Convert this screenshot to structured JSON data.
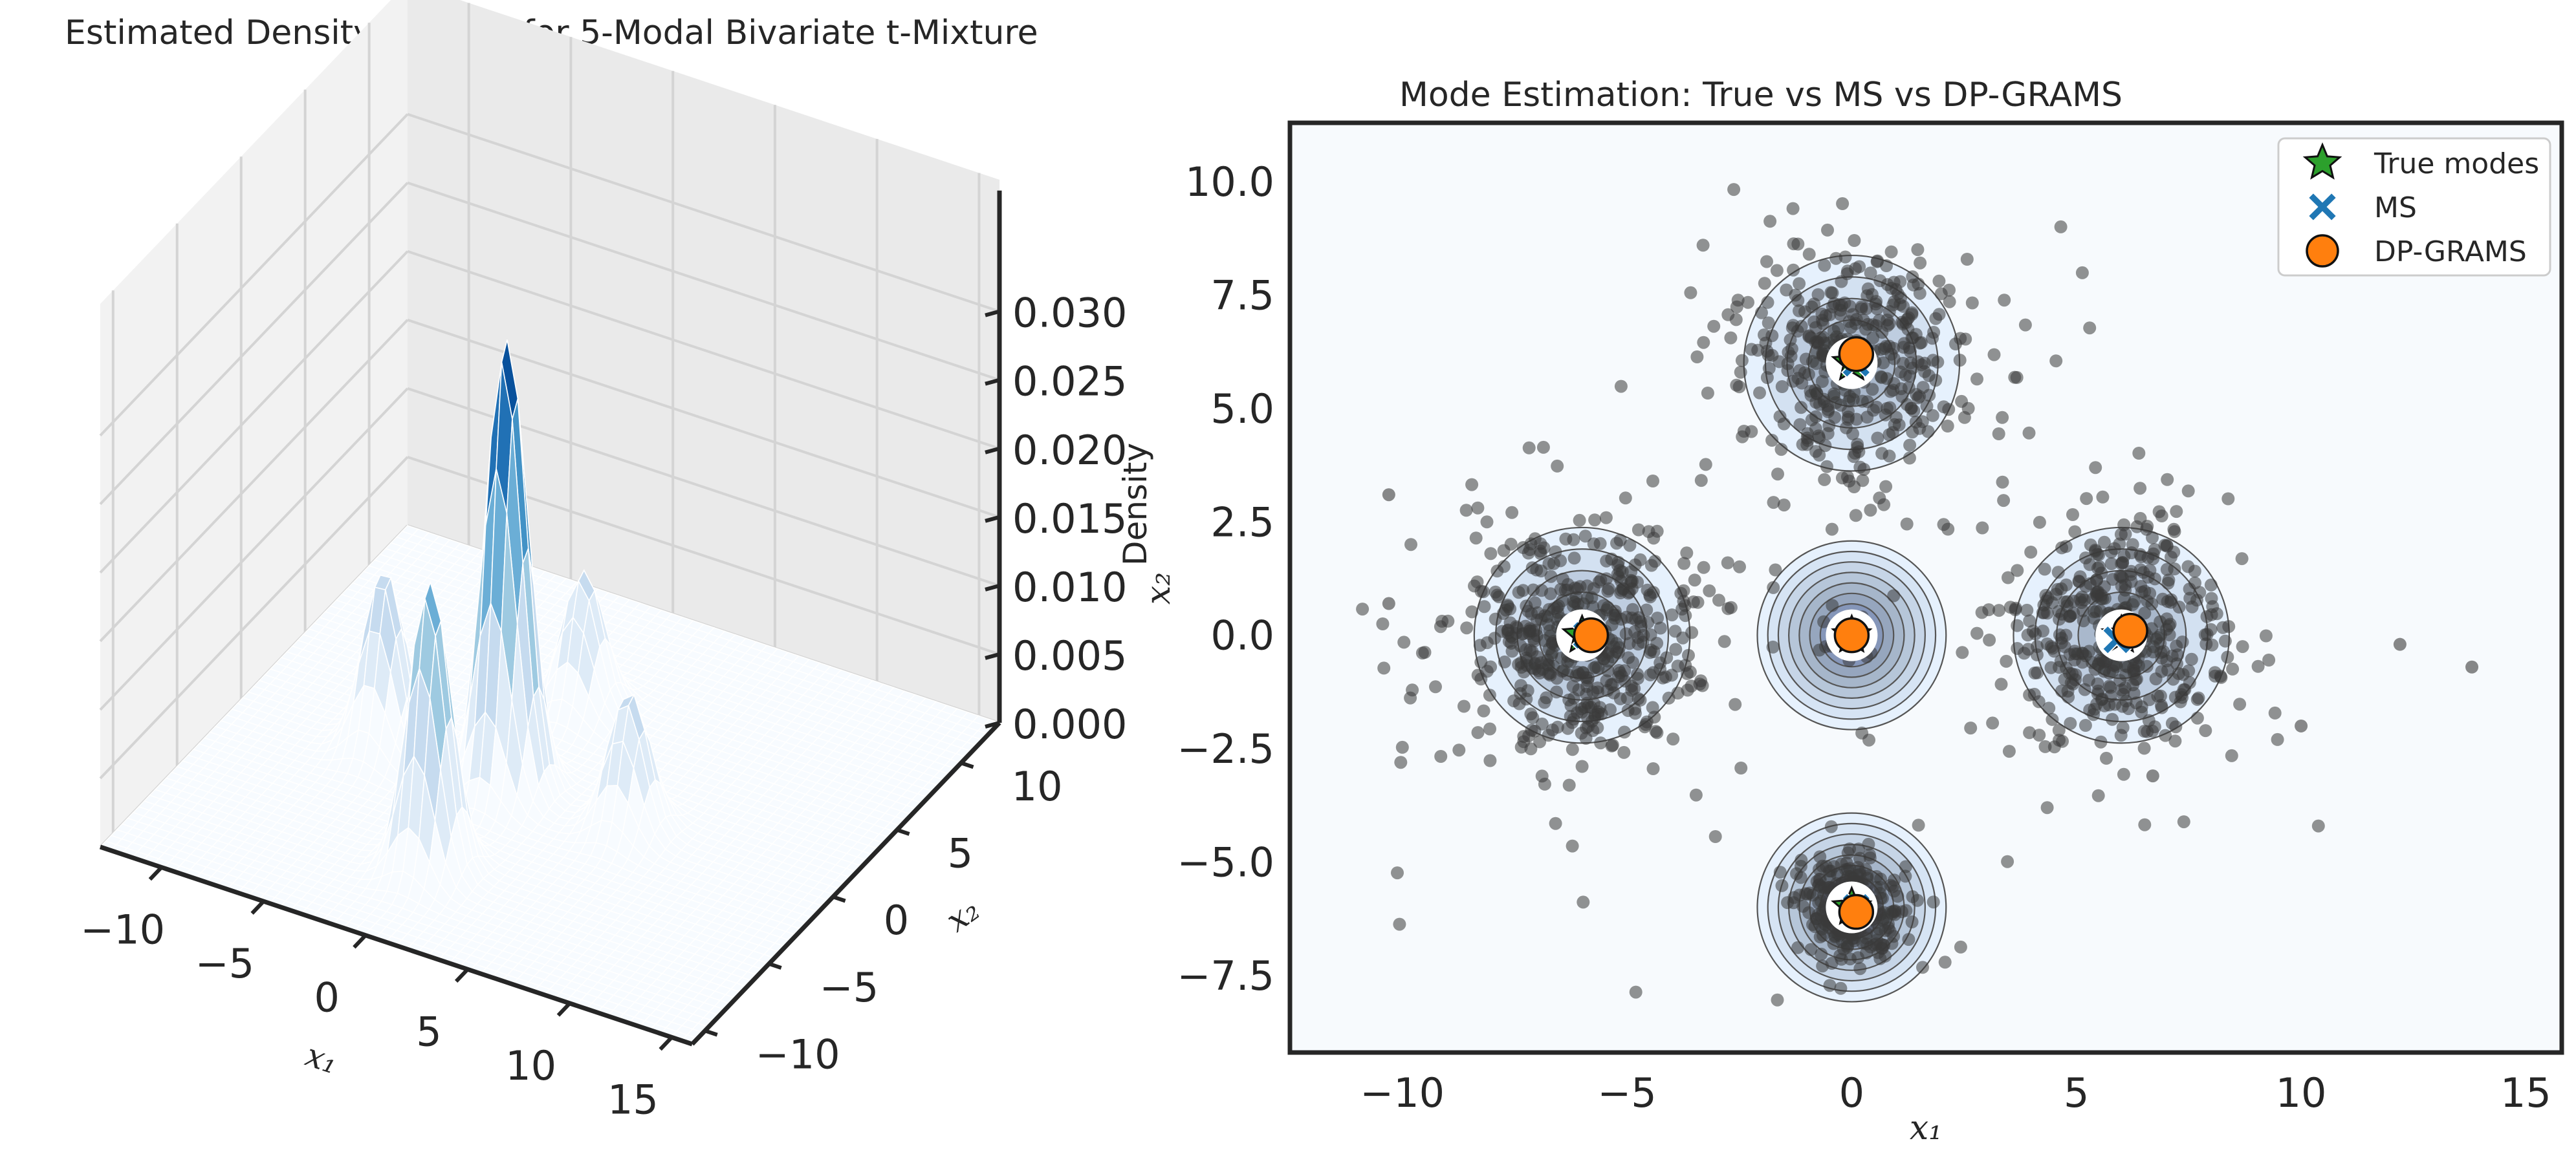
{
  "chart_data": [
    {
      "type": "surface3d",
      "title": "Estimated Density Surface for 5-Modal Bivariate t-Mixture",
      "xlabel": "x₁",
      "ylabel": "x₂",
      "zlabel": "Density",
      "x_ticks": [
        "−10",
        "−5",
        "0",
        "5",
        "10",
        "15"
      ],
      "y_ticks": [
        "−10",
        "−5",
        "0",
        "5",
        "10"
      ],
      "z_ticks": [
        "0.000",
        "0.005",
        "0.010",
        "0.015",
        "0.020",
        "0.025",
        "0.030"
      ],
      "xlim": [
        -13,
        16
      ],
      "ylim": [
        -11,
        13
      ],
      "zlim": [
        0,
        0.033
      ],
      "colormap": "Blues",
      "grid": true,
      "peaks": [
        {
          "x": 0,
          "y": 6,
          "density": 0.01
        },
        {
          "x": -6,
          "y": 0,
          "density": 0.013
        },
        {
          "x": 0,
          "y": 0,
          "density": 0.033
        },
        {
          "x": 6,
          "y": 0,
          "density": 0.01
        },
        {
          "x": 0,
          "y": -6,
          "density": 0.021
        }
      ]
    },
    {
      "type": "scatter",
      "title": "Mode Estimation: True vs MS vs DP-GRAMS",
      "xlabel": "x₁",
      "ylabel": "x₂",
      "xlim": [
        -12.5,
        15.8
      ],
      "ylim": [
        -9.2,
        11.3
      ],
      "x_ticks": [
        "−10",
        "−5",
        "0",
        "5",
        "10",
        "15"
      ],
      "y_ticks": [
        "−7.5",
        "−5.0",
        "−2.5",
        "0.0",
        "2.5",
        "5.0",
        "7.5",
        "10.0"
      ],
      "legend_position": "top-right",
      "series": [
        {
          "name": "True modes",
          "marker": "star",
          "color": "#2ca02c",
          "points": [
            [
              0,
              6
            ],
            [
              -6,
              0
            ],
            [
              0,
              0
            ],
            [
              6,
              0
            ],
            [
              0,
              -6
            ]
          ]
        },
        {
          "name": "MS",
          "marker": "x",
          "color": "#1f77b4",
          "points": [
            [
              0.1,
              6.0
            ],
            [
              -5.9,
              0.0
            ],
            [
              0.0,
              0.0
            ],
            [
              5.9,
              -0.1
            ],
            [
              0.1,
              -6.0
            ]
          ]
        },
        {
          "name": "DP-GRAMS",
          "marker": "circle",
          "color": "#ff7f0e",
          "points": [
            [
              0.1,
              6.2
            ],
            [
              -5.8,
              0.0
            ],
            [
              0.0,
              0.0
            ],
            [
              6.2,
              0.1
            ],
            [
              0.1,
              -6.1
            ]
          ]
        }
      ],
      "samples_color": "#3a3a3a",
      "clusters": [
        {
          "center": [
            0,
            6
          ],
          "spread": 1.2,
          "count": 420
        },
        {
          "center": [
            -6,
            0
          ],
          "spread": 1.3,
          "count": 520
        },
        {
          "center": [
            6,
            0
          ],
          "spread": 1.2,
          "count": 460
        },
        {
          "center": [
            0,
            -6
          ],
          "spread": 0.55,
          "count": 300
        },
        {
          "center": [
            0,
            0
          ],
          "spread": 0.25,
          "count": 40
        }
      ],
      "outliers": [
        [
          12.2,
          -0.2
        ],
        [
          13.8,
          -0.7
        ],
        [
          10.0,
          -2.0
        ],
        [
          -10.3,
          3.1
        ],
        [
          -10.3,
          0.7
        ],
        [
          6.7,
          -3.1
        ]
      ]
    }
  ]
}
